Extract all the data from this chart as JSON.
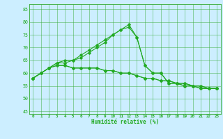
{
  "title": "",
  "xlabel": "Humidité relative (%)",
  "ylabel": "",
  "background_color": "#cceeff",
  "grid_color": "#33aa33",
  "line_color": "#22aa22",
  "xlim": [
    -0.5,
    23.5
  ],
  "ylim": [
    44,
    87
  ],
  "yticks": [
    45,
    50,
    55,
    60,
    65,
    70,
    75,
    80,
    85
  ],
  "xticks": [
    0,
    1,
    2,
    3,
    4,
    5,
    6,
    7,
    8,
    9,
    10,
    11,
    12,
    13,
    14,
    15,
    16,
    17,
    18,
    19,
    20,
    21,
    22,
    23
  ],
  "series": [
    [
      58,
      60,
      62,
      64,
      65,
      65,
      67,
      69,
      71,
      73,
      75,
      77,
      78,
      74,
      63,
      60,
      60,
      56,
      56,
      55,
      55,
      54,
      54,
      54
    ],
    [
      58,
      60,
      62,
      64,
      64,
      65,
      66,
      68,
      70,
      72,
      75,
      77,
      79,
      74,
      63,
      60,
      60,
      56,
      56,
      55,
      55,
      54,
      54,
      54
    ],
    [
      58,
      60,
      62,
      63,
      63,
      62,
      62,
      62,
      62,
      61,
      61,
      60,
      60,
      59,
      58,
      58,
      57,
      57,
      56,
      56,
      55,
      55,
      54,
      54
    ],
    [
      58,
      60,
      62,
      63,
      63,
      62,
      62,
      62,
      62,
      61,
      61,
      60,
      60,
      59,
      58,
      58,
      57,
      57,
      56,
      56,
      55,
      55,
      54,
      54
    ]
  ]
}
